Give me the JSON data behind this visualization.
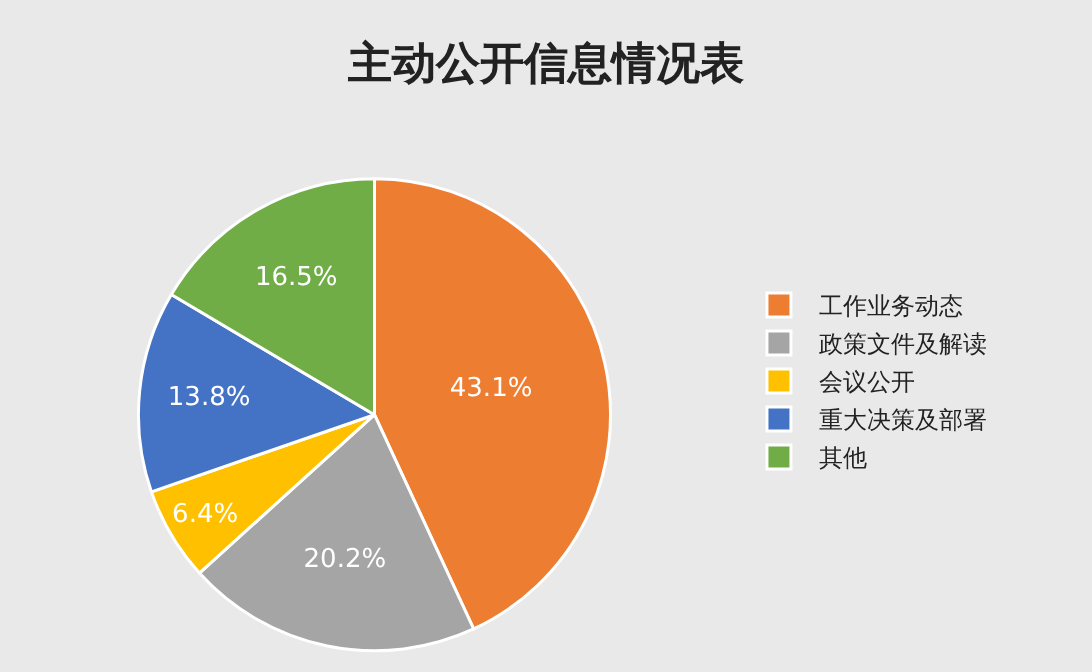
{
  "chart_data": {
    "type": "pie",
    "title": "主动公开信息情况表",
    "categories": [
      "工作业务动态",
      "政策文件及解读",
      "会议公开",
      "重大决策及部署",
      "其他"
    ],
    "values": [
      43.1,
      20.2,
      6.4,
      13.8,
      16.5
    ],
    "colors": [
      "#ed7d31",
      "#a5a5a5",
      "#ffc000",
      "#4472c4",
      "#70ad47"
    ],
    "value_labels": [
      "43.1%",
      "20.2%",
      "6.4%",
      "13.8%",
      "16.5%"
    ],
    "legend": "right"
  }
}
